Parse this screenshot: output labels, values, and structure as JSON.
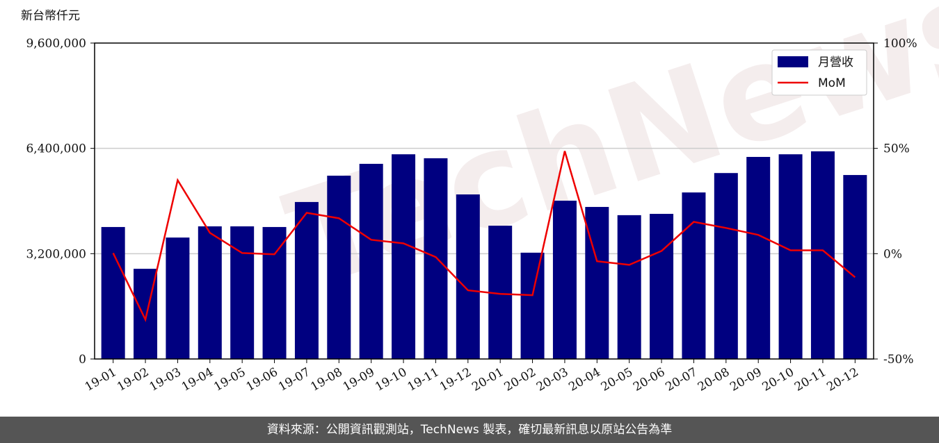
{
  "chart_data": {
    "type": "bar-line",
    "y_label": "新台幣仟元",
    "watermark": "TechNews",
    "categories": [
      "19-01",
      "19-02",
      "19-03",
      "19-04",
      "19-05",
      "19-06",
      "19-07",
      "19-08",
      "19-09",
      "19-10",
      "19-11",
      "19-12",
      "20-01",
      "20-02",
      "20-03",
      "20-04",
      "20-05",
      "20-06",
      "20-07",
      "20-08",
      "20-09",
      "20-10",
      "20-11",
      "20-12"
    ],
    "series": [
      {
        "name": "月營收",
        "color": "#000080",
        "type": "bar",
        "values": [
          4010000,
          2740000,
          3690000,
          4030000,
          4030000,
          4010000,
          4770000,
          5570000,
          5930000,
          6220000,
          6100000,
          5000000,
          4050000,
          3230000,
          4810000,
          4620000,
          4370000,
          4410000,
          5060000,
          5650000,
          6140000,
          6220000,
          6310000,
          5590000
        ]
      },
      {
        "name": "MoM",
        "color": "#ee0000",
        "type": "line",
        "axis": "y2",
        "values": [
          0.3,
          -31.3,
          34.9,
          9.9,
          0.3,
          -0.3,
          19.4,
          16.8,
          6.6,
          4.9,
          -1.6,
          -17.4,
          -19.1,
          -19.7,
          48.7,
          -3.6,
          -5.3,
          1.3,
          15.1,
          12.2,
          8.9,
          1.6,
          1.6,
          -11.2
        ]
      }
    ],
    "ylim": [
      0,
      9600000
    ],
    "yticks": [
      0,
      {
        "value": 3200000,
        "label": "3,200,000"
      },
      {
        "value": 6400000,
        "label": "6,400,000"
      },
      {
        "value": 9600000,
        "label": "9,600,000"
      }
    ],
    "y2lim": [
      -50,
      100
    ],
    "y2ticks": [
      {
        "value": -50,
        "label": "-50%"
      },
      {
        "value": 0,
        "label": "0%"
      },
      {
        "value": 50,
        "label": "50%"
      },
      {
        "value": 100,
        "label": "100%"
      }
    ],
    "grid": true,
    "legend": "upper right",
    "source": "資料來源：公開資訊觀測站，TechNews 製表，確切最新訊息以原站公告為準"
  }
}
